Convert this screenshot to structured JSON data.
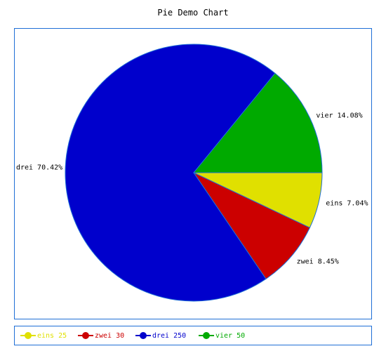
{
  "chart_data": {
    "type": "pie",
    "title": "Pie Demo Chart",
    "categories": [
      "eins",
      "zwei",
      "drei",
      "vier"
    ],
    "values": [
      25,
      30,
      250,
      50
    ],
    "percent_labels": [
      "eins 7.04%",
      "zwei 8.45%",
      "drei 70.42%",
      "vier 14.08%"
    ],
    "legend_labels": [
      "eins 25",
      "zwei 30",
      "drei 250",
      "vier 50"
    ],
    "colors": [
      "#e0e000",
      "#cc0000",
      "#0000cc",
      "#00aa00"
    ],
    "start_angle_deg": 0,
    "direction": "clockwise",
    "legend_position": "bottom"
  }
}
